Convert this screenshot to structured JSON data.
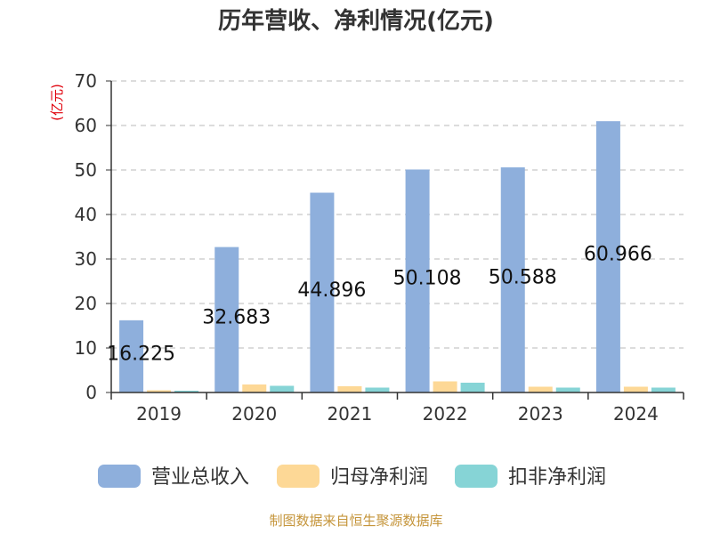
{
  "chart_data": {
    "type": "bar",
    "title": "历年营收、净利情况(亿元)",
    "ylabel": "(亿元)",
    "categories": [
      "2019",
      "2020",
      "2021",
      "2022",
      "2023",
      "2024"
    ],
    "series": [
      {
        "name": "营业总收入",
        "color": "#8eafdc",
        "values": [
          16.225,
          32.683,
          44.896,
          50.108,
          50.588,
          60.966
        ],
        "labels": [
          "16.225",
          "32.683",
          "44.896",
          "50.108",
          "50.588",
          "60.966"
        ]
      },
      {
        "name": "归母净利润",
        "color": "#fdd896",
        "values": [
          0.5,
          1.8,
          1.4,
          2.5,
          1.3,
          1.3
        ]
      },
      {
        "name": "扣非净利润",
        "color": "#86d4d6",
        "values": [
          0.4,
          1.5,
          1.1,
          2.2,
          1.1,
          1.1
        ]
      }
    ],
    "ylim": [
      0,
      70
    ],
    "yticks": [
      0,
      10,
      20,
      30,
      40,
      50,
      60,
      70
    ],
    "grid": true,
    "legend_position": "bottom"
  },
  "source": "制图数据来自恒生聚源数据库"
}
